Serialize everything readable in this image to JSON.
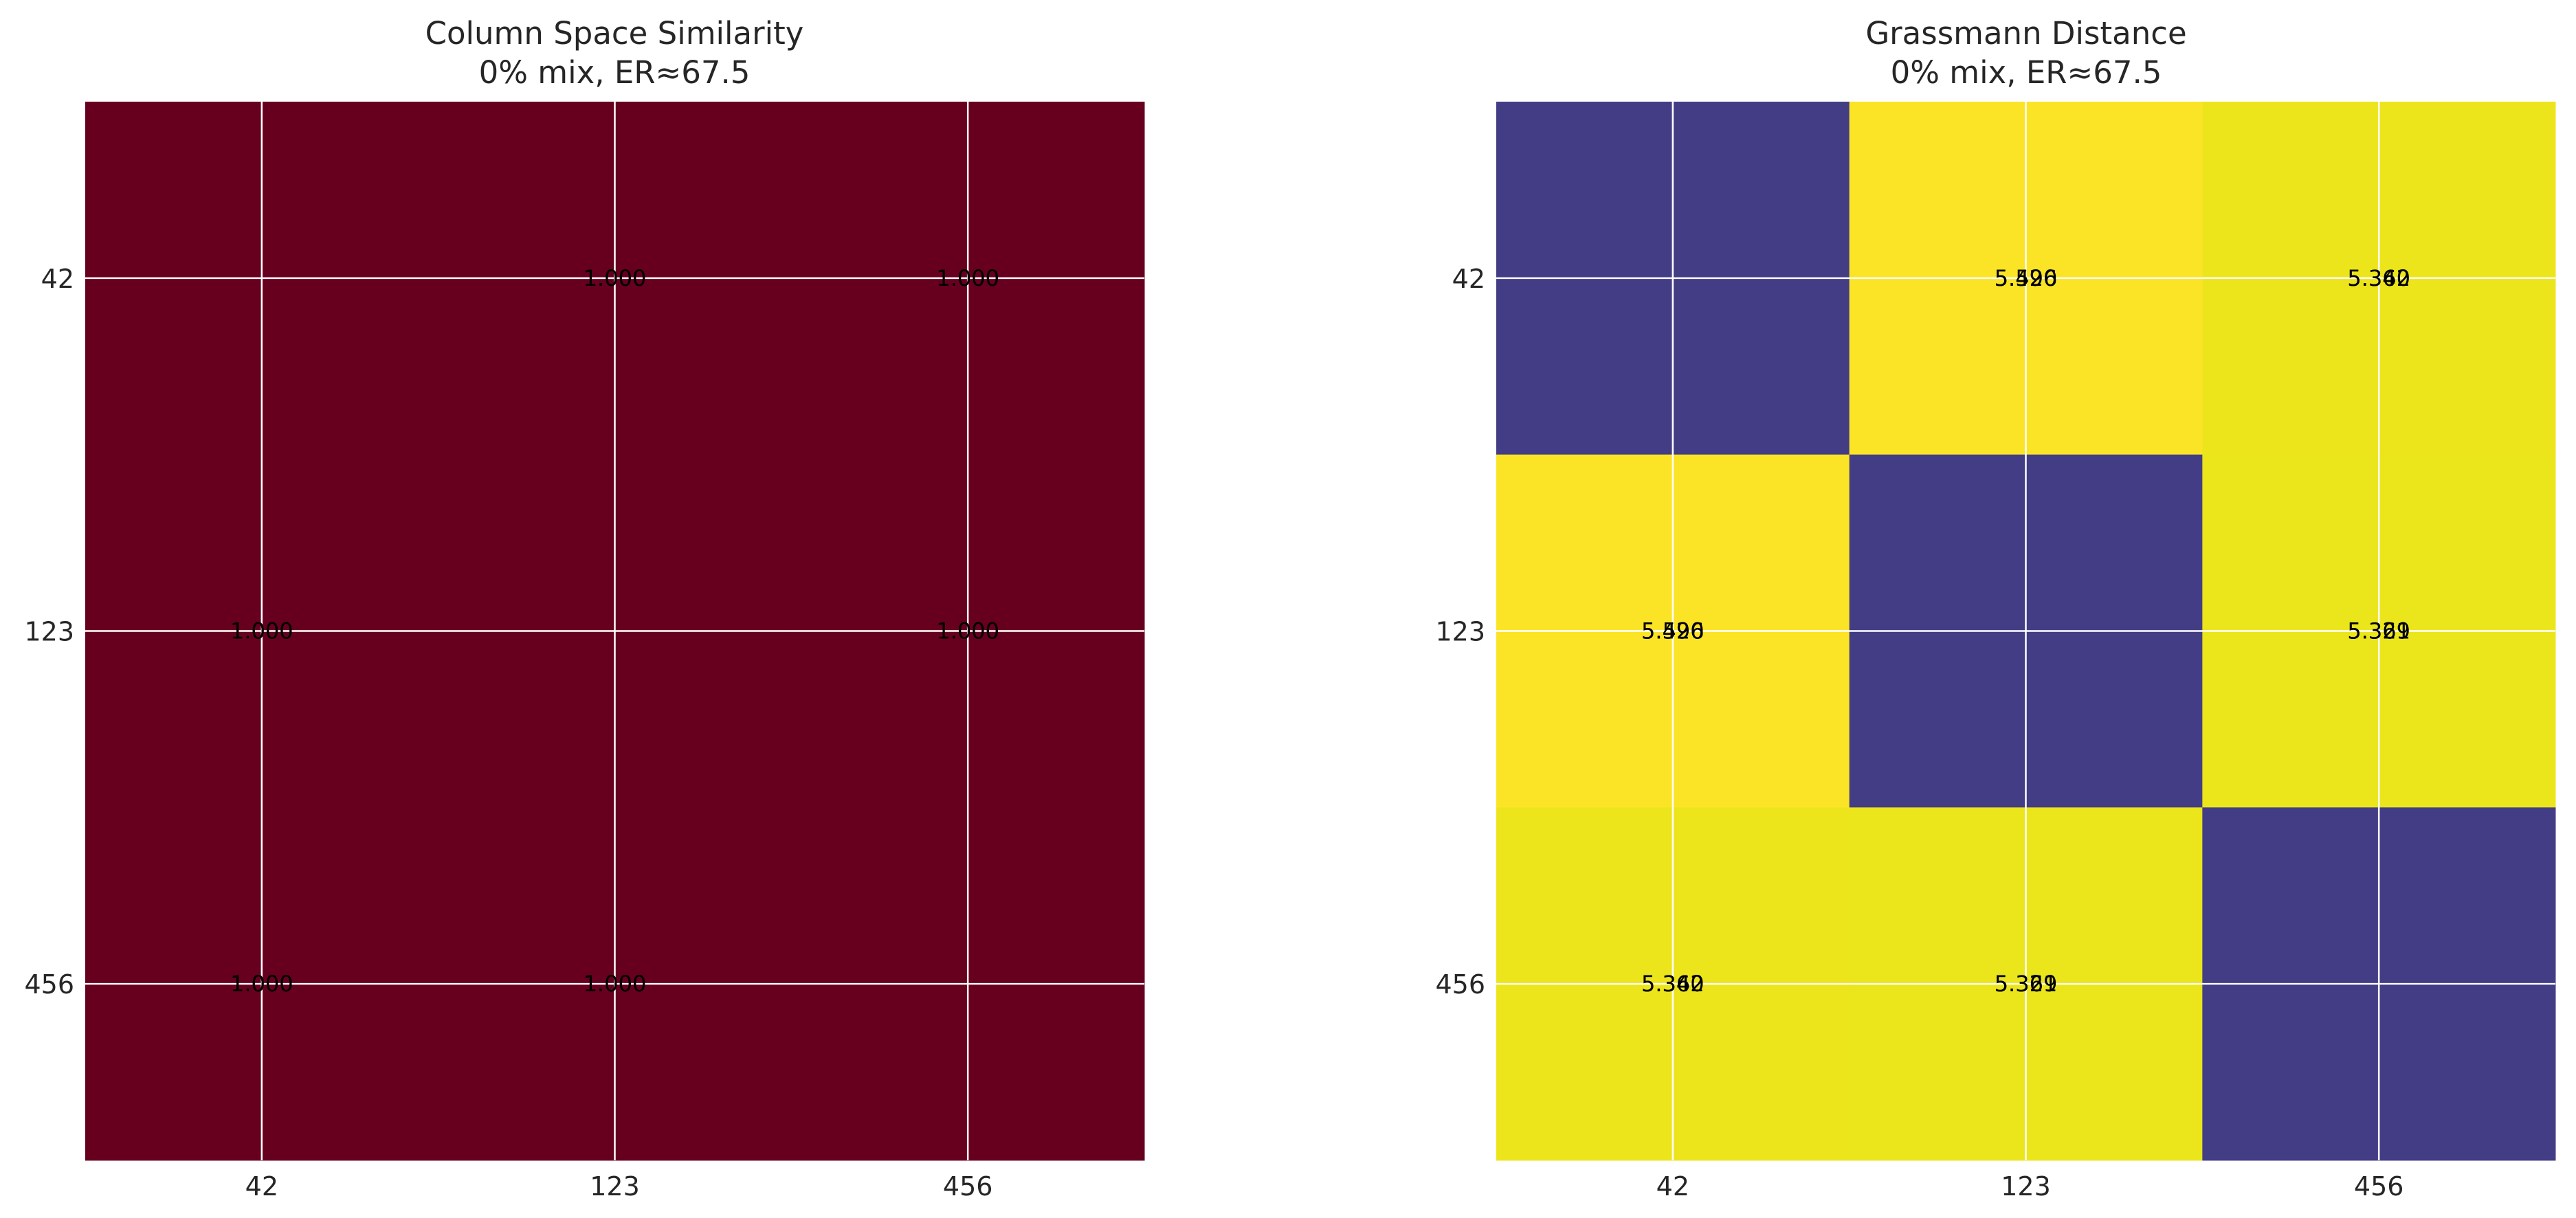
{
  "chart_data": [
    {
      "type": "heatmap",
      "title": "Column Space Similarity",
      "subtitle": "0% mix, ER≈67.5",
      "x_categories": [
        "42",
        "123",
        "456"
      ],
      "y_categories": [
        "42",
        "123",
        "456"
      ],
      "cell_colors": [
        [
          "#67001f",
          "#67001f",
          "#67001f"
        ],
        [
          "#67001f",
          "#67001f",
          "#67001f"
        ],
        [
          "#67001f",
          "#67001f",
          "#67001f"
        ]
      ],
      "cell_labels": [
        [
          null,
          [
            "1.000",
            "1.000"
          ],
          [
            "1.000",
            "1.000"
          ]
        ],
        [
          [
            "1.000",
            "1.000"
          ],
          null,
          [
            "1.000",
            "1.000"
          ]
        ],
        [
          [
            "1.000",
            "1.000"
          ],
          [
            "1.000",
            "1.000"
          ],
          null
        ]
      ],
      "grid": true
    },
    {
      "type": "heatmap",
      "title": "Grassmann Distance",
      "subtitle": "0% mix, ER≈67.5",
      "x_categories": [
        "42",
        "123",
        "456"
      ],
      "y_categories": [
        "42",
        "123",
        "456"
      ],
      "cell_colors": [
        [
          "#433d85",
          "#fbe426",
          "#ede51b"
        ],
        [
          "#fbe426",
          "#433d85",
          "#ebe51b"
        ],
        [
          "#ede51b",
          "#ebe51b",
          "#433d85"
        ]
      ],
      "cell_labels": [
        [
          null,
          [
            "5.520",
            "5.496"
          ],
          [
            "5.340",
            "5.362"
          ]
        ],
        [
          [
            "5.520",
            "5.496"
          ],
          null,
          [
            "5.329",
            "5.361"
          ]
        ],
        [
          [
            "5.340",
            "5.362"
          ],
          [
            "5.329",
            "5.361"
          ],
          null
        ]
      ],
      "grid": true
    }
  ]
}
